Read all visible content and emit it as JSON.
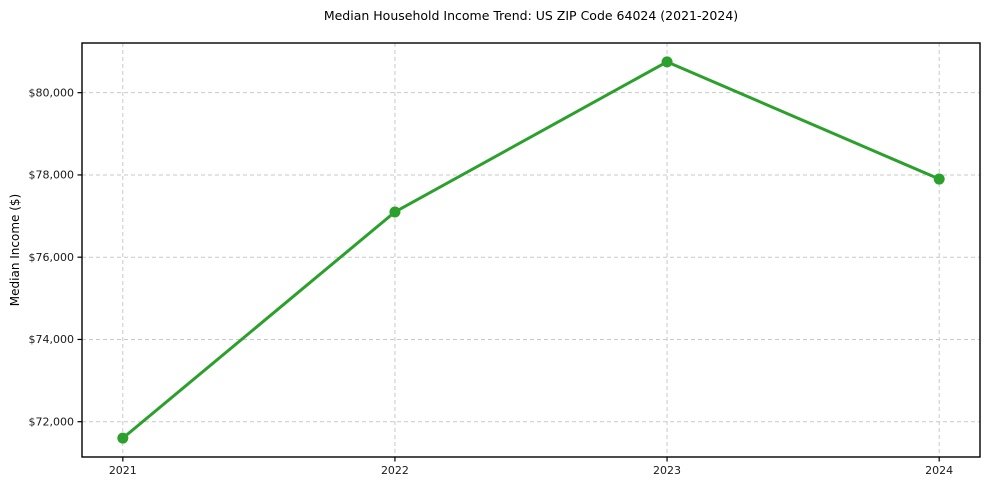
{
  "page": {
    "background": "#ffffff"
  },
  "chart_data": {
    "type": "line",
    "title": "Median Household Income Trend: US ZIP Code 64024 (2021-2024)",
    "xlabel": "",
    "ylabel": "Median Income ($)",
    "x": [
      2021,
      2022,
      2023,
      2024
    ],
    "x_tick_labels": [
      "2021",
      "2022",
      "2023",
      "2024"
    ],
    "series": [
      {
        "name": "Median Household Income",
        "values": [
          71600,
          77100,
          80750,
          77900
        ],
        "color": "#2ca02c",
        "marker": "circle",
        "line_width": 3
      }
    ],
    "y_ticks": [
      72000,
      74000,
      76000,
      78000,
      80000
    ],
    "y_tick_labels": [
      "$72,000",
      "$74,000",
      "$76,000",
      "$78,000",
      "$80,000"
    ],
    "ylim": [
      71142,
      81208
    ],
    "xlim": [
      2020.85,
      2024.15
    ],
    "grid": true,
    "grid_style": "dashed",
    "grid_color": "#c9c9c9",
    "spine_color": "#000000",
    "tick_label_color": "#1a1a1a",
    "legend": "none"
  }
}
